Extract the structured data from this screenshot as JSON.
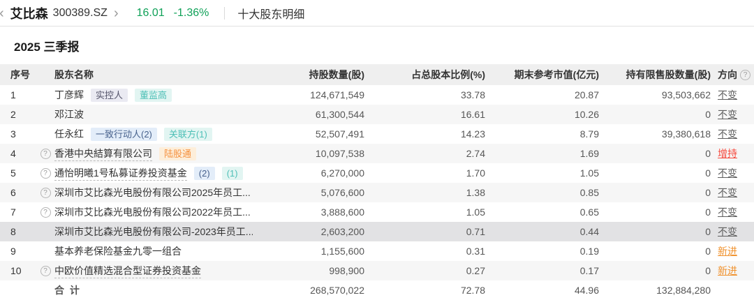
{
  "header": {
    "back_icon": "‹",
    "stock_name": "艾比森",
    "stock_code": "300389.SZ",
    "forward_icon": "›",
    "price": "16.01",
    "change_pct": "-1.36%",
    "page_title": "十大股东明细"
  },
  "section": {
    "report_title": "2025 三季报"
  },
  "table": {
    "columns": {
      "no": "序号",
      "name": "股东名称",
      "shares": "持股数量(股)",
      "pct": "占总股本比例(%)",
      "mkt": "期末参考市值(亿元)",
      "restricted": "持有限售股数量(股)",
      "direction": "方向"
    },
    "help_icon_glyph": "?",
    "rows": [
      {
        "no": "1",
        "help": false,
        "name": "丁彦辉",
        "underline": false,
        "tags": [
          {
            "label": "实控人",
            "type": "gray"
          },
          {
            "label": "董监高",
            "type": "teal"
          }
        ],
        "shares": "124,671,549",
        "pct": "33.78",
        "mkt": "20.87",
        "restricted": "93,503,662",
        "direction": "不变",
        "dir_type": "unchanged",
        "highlight": false
      },
      {
        "no": "2",
        "help": false,
        "name": "邓江波",
        "underline": false,
        "tags": [],
        "shares": "61,300,544",
        "pct": "16.61",
        "mkt": "10.26",
        "restricted": "0",
        "direction": "不变",
        "dir_type": "unchanged",
        "highlight": false
      },
      {
        "no": "3",
        "help": false,
        "name": "任永红",
        "underline": false,
        "tags": [
          {
            "label": "一致行动人(2)",
            "type": "blue"
          },
          {
            "label": "关联方(1)",
            "type": "teal"
          }
        ],
        "shares": "52,507,491",
        "pct": "14.23",
        "mkt": "8.79",
        "restricted": "39,380,618",
        "direction": "不变",
        "dir_type": "unchanged",
        "highlight": false
      },
      {
        "no": "4",
        "help": true,
        "name": "香港中央結算有限公司",
        "underline": true,
        "tags": [
          {
            "label": "陆股通",
            "type": "orange"
          }
        ],
        "shares": "10,097,538",
        "pct": "2.74",
        "mkt": "1.69",
        "restricted": "0",
        "direction": "增持",
        "dir_type": "increase",
        "highlight": false
      },
      {
        "no": "5",
        "help": true,
        "name": "通怡明曦1号私募证券投资基金",
        "underline": true,
        "tags": [
          {
            "label": "(2)",
            "type": "blue"
          },
          {
            "label": "(1)",
            "type": "teal"
          }
        ],
        "shares": "6,270,000",
        "pct": "1.70",
        "mkt": "1.05",
        "restricted": "0",
        "direction": "不变",
        "dir_type": "unchanged",
        "highlight": false
      },
      {
        "no": "6",
        "help": true,
        "name": "深圳市艾比森光电股份有限公司2025年员工...",
        "underline": false,
        "tags": [],
        "shares": "5,076,600",
        "pct": "1.38",
        "mkt": "0.85",
        "restricted": "0",
        "direction": "不变",
        "dir_type": "unchanged",
        "highlight": false
      },
      {
        "no": "7",
        "help": true,
        "name": "深圳市艾比森光电股份有限公司2022年员工...",
        "underline": false,
        "tags": [],
        "shares": "3,888,600",
        "pct": "1.05",
        "mkt": "0.65",
        "restricted": "0",
        "direction": "不变",
        "dir_type": "unchanged",
        "highlight": false
      },
      {
        "no": "8",
        "help": false,
        "name": "深圳市艾比森光电股份有限公司-2023年员工...",
        "underline": false,
        "tags": [],
        "shares": "2,603,200",
        "pct": "0.71",
        "mkt": "0.44",
        "restricted": "0",
        "direction": "不变",
        "dir_type": "unchanged",
        "highlight": true
      },
      {
        "no": "9",
        "help": false,
        "name": "基本养老保险基金九零一组合",
        "underline": false,
        "tags": [],
        "shares": "1,155,600",
        "pct": "0.31",
        "mkt": "0.19",
        "restricted": "0",
        "direction": "新进",
        "dir_type": "new",
        "highlight": false
      },
      {
        "no": "10",
        "help": true,
        "name": "中欧价值精选混合型证券投资基金",
        "underline": true,
        "tags": [],
        "shares": "998,900",
        "pct": "0.27",
        "mkt": "0.17",
        "restricted": "0",
        "direction": "新进",
        "dir_type": "new",
        "highlight": false
      }
    ],
    "total": {
      "label": "合 计",
      "shares": "268,570,022",
      "pct": "72.78",
      "mkt": "44.96",
      "restricted": "132,884,280"
    }
  },
  "colors": {
    "price_green": "#0fa158",
    "increase_red": "#f5483c",
    "new_orange": "#f0922e",
    "unchanged_gray": "#5f5f5f",
    "header_bg": "#efefef",
    "highlight_row_bg": "#e2e2e4"
  }
}
